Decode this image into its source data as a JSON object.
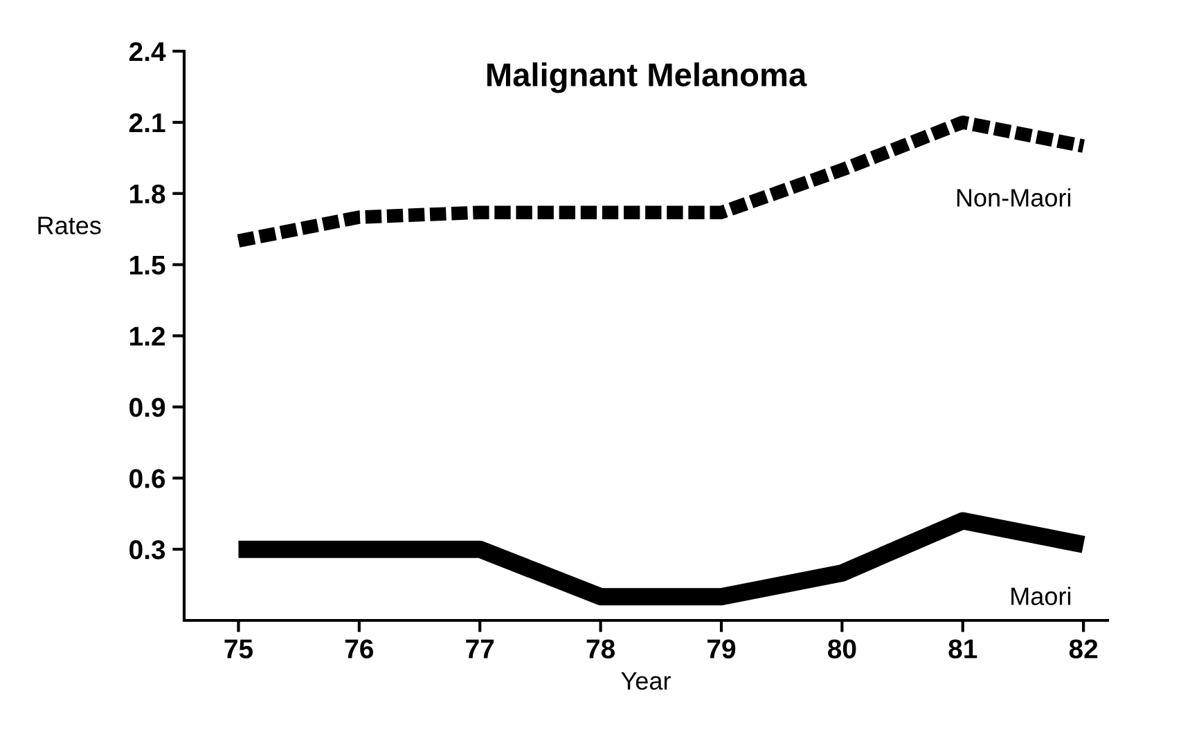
{
  "chart_data": {
    "type": "line",
    "title": "Malignant Melanoma",
    "xlabel": "Year",
    "ylabel": "Rates",
    "x": [
      75,
      76,
      77,
      78,
      79,
      80,
      81,
      82
    ],
    "series": [
      {
        "name": "Non-Maori",
        "color": "#000000",
        "line_style": "dashed",
        "values": [
          1.6,
          1.7,
          1.72,
          1.72,
          1.72,
          1.9,
          2.1,
          2.0
        ]
      },
      {
        "name": "Maori",
        "color": "#000000",
        "line_style": "solid",
        "values": [
          0.3,
          0.3,
          0.3,
          0.1,
          0.1,
          0.2,
          0.42,
          0.32
        ]
      }
    ],
    "xlim": [
      74.55,
      82.2
    ],
    "xticks": [
      75,
      76,
      77,
      78,
      79,
      80,
      81,
      82
    ],
    "ylim": [
      0,
      2.4
    ],
    "yticks": [
      {
        "value": 0.3,
        "label": "0.3"
      },
      {
        "value": 0.6,
        "label": "0.6"
      },
      {
        "value": 0.9,
        "label": "0.9"
      },
      {
        "value": 1.2,
        "label": "1.2"
      },
      {
        "value": 1.5,
        "label": "1.5"
      },
      {
        "value": 1.8,
        "label": "1.8"
      },
      {
        "value": 2.1,
        "label": "2.1"
      },
      {
        "value": 2.4,
        "label": "2.4"
      }
    ],
    "grid": false,
    "legend": false,
    "marker": "none"
  }
}
